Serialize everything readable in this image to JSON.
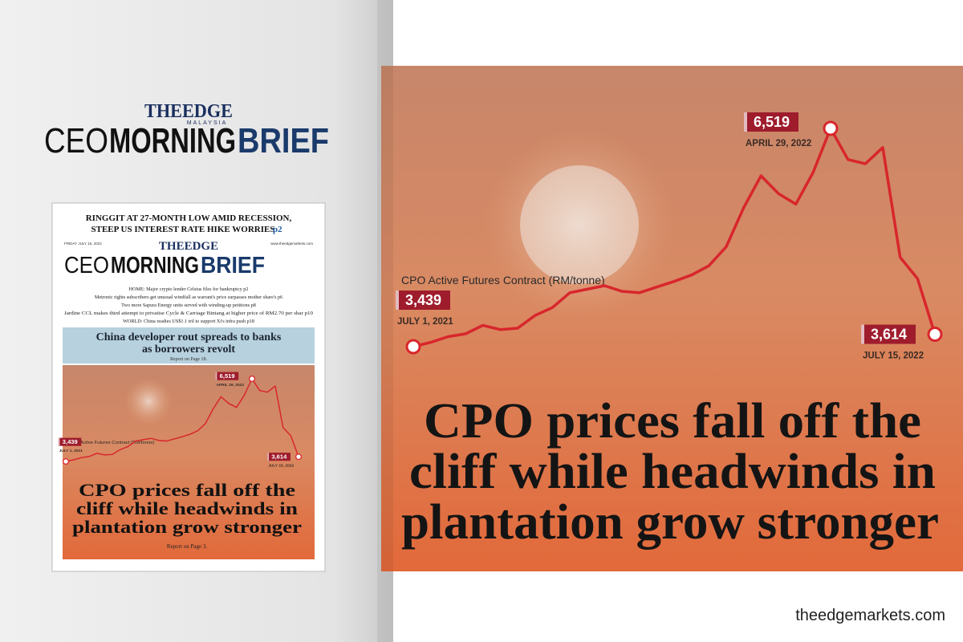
{
  "logo": {
    "brand": "THEEDGE",
    "region": "MALAYSIA",
    "words": [
      "CEO",
      "MORNING",
      "BRIEF"
    ]
  },
  "cover": {
    "banner": [
      "RINGGIT AT 27-MONTH LOW AMID RECESSION,",
      "STEEP US INTEREST RATE HIKE WORRIES"
    ],
    "banner_page": "p2",
    "date": "FRIDAY JULY 15, 2022",
    "website": "www.theedgemarkets.com",
    "briefs": [
      "HOME: Major crypto lender Celsius files for bankruptcy p2",
      "Metronic rights subscribers get unusual windfall as warrant's price surpasses mother share's p6",
      "Two more Sapura Energy units served with winding-up petitions p8",
      "Jardine CCL makes third attempt to privatise Cycle & Carriage Bintang at higher price of RM2.70 per shar p10",
      "WORLD: China readies US$1.1 tril to support Xi's infra push p18"
    ],
    "story": [
      "China developer rout spreads to banks",
      "as borrowers revolt"
    ],
    "story_ref": "Report on Page 18.",
    "lead_ref": "Report on Page 3."
  },
  "headline": [
    "CPO prices fall off the",
    "cliff while headwinds in",
    "plantation grow stronger"
  ],
  "chart_data": {
    "type": "line",
    "title": "CPO Active Futures Contract (RM/tonne)",
    "color": "#d8262c",
    "label_color": "#9e1c2c",
    "categories": [
      "JULY 1, 2021",
      null,
      null,
      null,
      null,
      null,
      null,
      null,
      null,
      null,
      null,
      null,
      null,
      null,
      null,
      null,
      null,
      null,
      null,
      null,
      null,
      null,
      null,
      null,
      "APRIL 29, 2022",
      null,
      null,
      null,
      null,
      null,
      "JULY 15, 2022"
    ],
    "values": [
      3439,
      3500,
      3580,
      3620,
      3740,
      3680,
      3700,
      3880,
      3990,
      4200,
      4250,
      4300,
      4220,
      4200,
      4280,
      4360,
      4450,
      4580,
      4850,
      5400,
      5850,
      5600,
      5450,
      5900,
      6519,
      6080,
      6020,
      6250,
      4700,
      4400,
      3614
    ],
    "value_labels": [
      "3,439",
      null,
      null,
      null,
      null,
      null,
      null,
      null,
      null,
      null,
      null,
      null,
      null,
      null,
      null,
      null,
      null,
      null,
      null,
      null,
      null,
      null,
      null,
      null,
      "6,519",
      null,
      null,
      null,
      null,
      null,
      "3,614"
    ]
  },
  "footer": "theedgemarkets.com"
}
